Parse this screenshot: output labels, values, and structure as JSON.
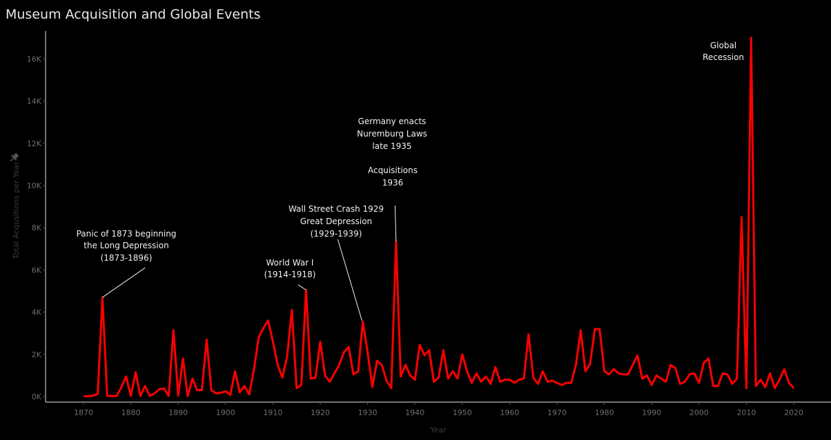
{
  "chart_data": {
    "type": "line",
    "title": "Museum Acquisition and Global Events",
    "xlabel": "Year",
    "ylabel": "Total Acqusitions per Year",
    "xlim": [
      1862,
      2027
    ],
    "ylim": [
      0,
      17500
    ],
    "x_ticks": [
      1870,
      1880,
      1890,
      1900,
      1910,
      1920,
      1930,
      1940,
      1950,
      1960,
      1970,
      1980,
      1990,
      2000,
      2010,
      2020
    ],
    "y_ticks": [
      0,
      2000,
      4000,
      6000,
      8000,
      10000,
      12000,
      14000,
      16000
    ],
    "y_tick_labels": [
      "0K",
      "2K",
      "4K",
      "6K",
      "8K",
      "10K",
      "12K",
      "14K",
      "16K"
    ],
    "grid": false,
    "series": [
      {
        "color": "#ff0000",
        "x": [
          1870,
          1871,
          1872,
          1873,
          1874,
          1875,
          1876,
          1877,
          1878,
          1879,
          1880,
          1881,
          1882,
          1883,
          1884,
          1885,
          1886,
          1887,
          1888,
          1889,
          1890,
          1891,
          1892,
          1893,
          1894,
          1895,
          1896,
          1897,
          1898,
          1899,
          1900,
          1901,
          1902,
          1903,
          1904,
          1905,
          1906,
          1907,
          1908,
          1909,
          1910,
          1911,
          1912,
          1913,
          1914,
          1915,
          1916,
          1917,
          1918,
          1919,
          1920,
          1921,
          1922,
          1923,
          1924,
          1925,
          1926,
          1927,
          1928,
          1929,
          1930,
          1931,
          1932,
          1933,
          1934,
          1935,
          1936,
          1937,
          1938,
          1939,
          1940,
          1941,
          1942,
          1943,
          1944,
          1945,
          1946,
          1947,
          1948,
          1949,
          1950,
          1951,
          1952,
          1953,
          1954,
          1955,
          1956,
          1957,
          1958,
          1959,
          1960,
          1961,
          1962,
          1963,
          1964,
          1965,
          1966,
          1967,
          1968,
          1969,
          1970,
          1971,
          1972,
          1973,
          1974,
          1975,
          1976,
          1977,
          1978,
          1979,
          1980,
          1981,
          1982,
          1983,
          1984,
          1985,
          1986,
          1987,
          1988,
          1989,
          1990,
          1991,
          1992,
          1993,
          1994,
          1995,
          1996,
          1997,
          1998,
          1999,
          2000,
          2001,
          2002,
          2003,
          2004,
          2005,
          2006,
          2007,
          2008,
          2009,
          2010,
          2011,
          2012,
          2013,
          2014,
          2015,
          2016,
          2017,
          2018,
          2019,
          2020
        ],
        "y": [
          10,
          20,
          40,
          120,
          4700,
          40,
          20,
          30,
          450,
          950,
          30,
          1150,
          30,
          500,
          30,
          150,
          350,
          380,
          40,
          3150,
          40,
          1800,
          20,
          850,
          300,
          300,
          2700,
          300,
          150,
          180,
          250,
          80,
          1200,
          200,
          500,
          100,
          1300,
          2800,
          3250,
          3600,
          2600,
          1500,
          900,
          1900,
          4100,
          400,
          550,
          5050,
          850,
          900,
          2600,
          1000,
          700,
          1100,
          1500,
          2100,
          2350,
          1050,
          1200,
          3550,
          2100,
          450,
          1700,
          1500,
          750,
          400,
          7350,
          950,
          1500,
          1000,
          800,
          2450,
          1950,
          2200,
          700,
          900,
          2200,
          850,
          1200,
          850,
          2000,
          1200,
          650,
          1100,
          700,
          950,
          600,
          1400,
          700,
          800,
          800,
          650,
          800,
          850,
          2950,
          900,
          600,
          1200,
          700,
          750,
          650,
          550,
          650,
          650,
          1500,
          3150,
          1200,
          1550,
          3200,
          3200,
          1200,
          1050,
          1300,
          1100,
          1050,
          1050,
          1500,
          1950,
          850,
          1000,
          550,
          1000,
          850,
          700,
          1500,
          1350,
          600,
          700,
          1050,
          1100,
          650,
          1600,
          1800,
          500,
          500,
          1100,
          1050,
          600,
          850,
          8500,
          400,
          17000,
          500,
          800,
          450,
          1100,
          400,
          800,
          1300,
          650,
          400
        ]
      }
    ],
    "annotations": [
      {
        "lines": [
          "Panic of 1873 beginning",
          "the Long Depression",
          "(1873-1896)"
        ],
        "target": [
          1874,
          4700
        ],
        "anchor": [
          1883,
          6100
        ]
      },
      {
        "lines": [
          "World War I",
          "(1914-1918)"
        ],
        "target": [
          1917,
          5050
        ],
        "anchor": [
          1915.3,
          5300
        ]
      },
      {
        "lines": [
          "Wall Street Crash 1929",
          "Great Depression",
          "(1929-1939)"
        ],
        "target": [
          1928.8,
          3600
        ],
        "anchor": [
          1923.7,
          7450
        ]
      },
      {
        "lines": [
          "Germany enacts",
          "Nuremburg Laws",
          "late 1935"
        ],
        "target": null,
        "anchor": null
      },
      {
        "lines": [
          "Acquisitions",
          "1936"
        ],
        "target": [
          1936,
          7350
        ],
        "anchor": [
          1935.8,
          9050
        ]
      },
      {
        "lines": [
          "Global",
          "Recession"
        ],
        "target": null,
        "anchor": null
      }
    ]
  }
}
